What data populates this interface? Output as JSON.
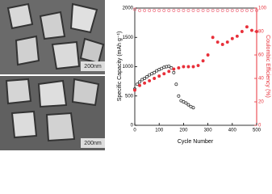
{
  "images": [
    {
      "scale_label": "200nm"
    },
    {
      "scale_label": "200nm"
    }
  ],
  "chart_data": {
    "type": "scatter",
    "x_label": "Cycle Number",
    "y_label": "Specific Capacity (mAh g⁻¹)",
    "y2_label": "Coulombic Efficiency (%)",
    "xlim": [
      0,
      500
    ],
    "xticks": [
      0,
      100,
      200,
      300,
      400,
      500
    ],
    "ylim": [
      0,
      2000
    ],
    "yticks": [
      0,
      500,
      1000,
      1500,
      2000
    ],
    "y2lim": [
      0,
      100
    ],
    "y2ticks": [
      0,
      20,
      40,
      60,
      80,
      100
    ],
    "y2_color": "#e8303a",
    "series": [
      {
        "color": "#222222",
        "marker": "open",
        "x": [
          0,
          10,
          20,
          30,
          40,
          50,
          60,
          70,
          80,
          90,
          100,
          110,
          120,
          130,
          140,
          150,
          160,
          170,
          180,
          190,
          200,
          210,
          220,
          230,
          240
        ],
        "values": [
          620,
          700,
          740,
          780,
          800,
          830,
          860,
          880,
          900,
          930,
          950,
          970,
          990,
          1000,
          1010,
          980,
          900,
          700,
          500,
          420,
          400,
          380,
          350,
          320,
          300
        ]
      },
      {
        "color": "#e8303a",
        "marker": "filled",
        "x": [
          0,
          20,
          40,
          60,
          80,
          100,
          120,
          140,
          160,
          180,
          200,
          220,
          240,
          260,
          280,
          300,
          320,
          340,
          360,
          380,
          400,
          420,
          440,
          460,
          480,
          500
        ],
        "values": [
          600,
          680,
          720,
          760,
          800,
          840,
          880,
          920,
          960,
          980,
          1000,
          1000,
          1000,
          1020,
          1100,
          1200,
          1500,
          1420,
          1380,
          1420,
          1480,
          1520,
          1600,
          1680,
          1620,
          1600
        ]
      },
      {
        "color": "#f07080",
        "marker": "open",
        "axis": "y2",
        "x": [
          0,
          20,
          40,
          60,
          80,
          100,
          120,
          140,
          160,
          180,
          200,
          220,
          240,
          260,
          280,
          300,
          320,
          340,
          360,
          380,
          400,
          420,
          440,
          460,
          480,
          500
        ],
        "values": [
          99,
          98,
          98,
          98,
          98,
          98,
          98,
          98,
          98,
          98,
          98,
          98,
          98,
          98,
          98,
          98,
          98,
          98,
          98,
          98,
          98,
          98,
          98,
          98,
          98,
          98
        ]
      }
    ]
  }
}
